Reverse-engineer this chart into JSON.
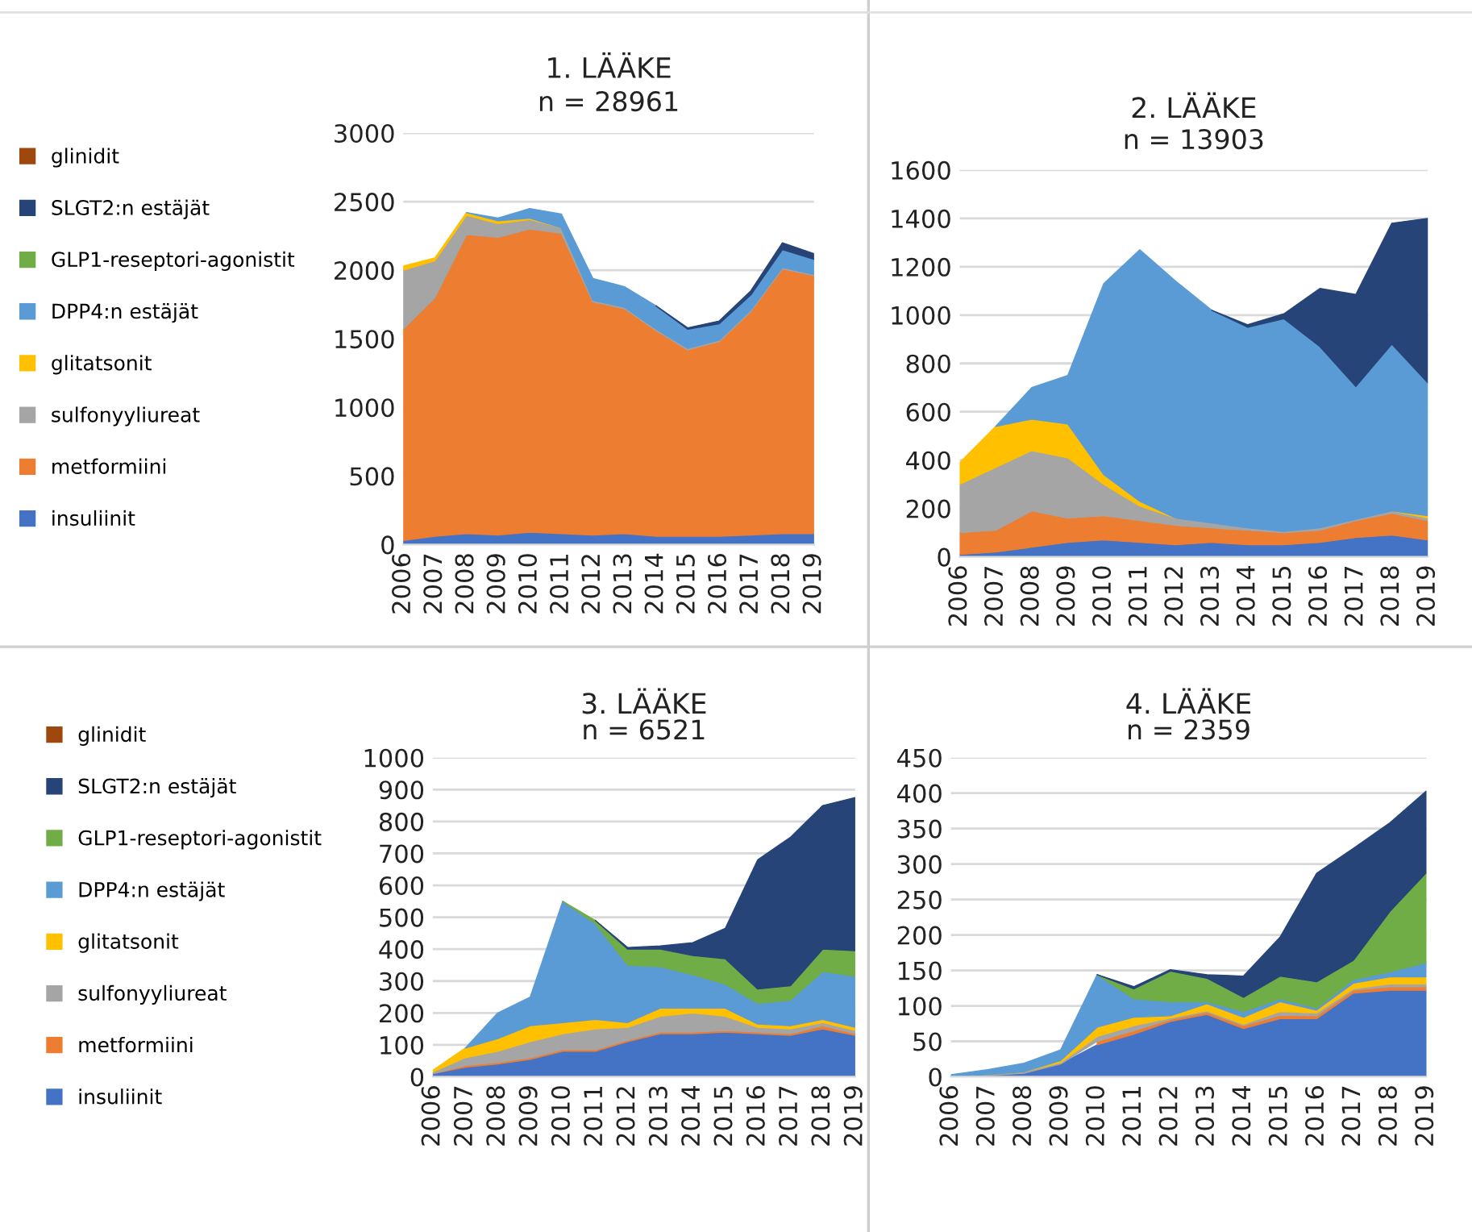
{
  "chart_data": [
    {
      "type": "area",
      "stacked": true,
      "title": "1. LÄÄKE",
      "subtitle": "n = 28961",
      "legend": "left",
      "grid": "y",
      "categories": [
        "2006",
        "2007",
        "2008",
        "2009",
        "2010",
        "2011",
        "2012",
        "2013",
        "2014",
        "2015",
        "2016",
        "2017",
        "2018",
        "2019"
      ],
      "ylim": [
        0,
        3000
      ],
      "yticks": [
        0,
        500,
        1000,
        1500,
        2000,
        2500,
        3000
      ],
      "series": [
        {
          "name": "insuliinit",
          "color": "#4472c4",
          "values": [
            30,
            60,
            80,
            70,
            90,
            80,
            70,
            80,
            60,
            60,
            60,
            70,
            80,
            80
          ]
        },
        {
          "name": "metformiini",
          "color": "#ed7d31",
          "values": [
            1540,
            1740,
            2180,
            2170,
            2210,
            2190,
            1700,
            1640,
            1500,
            1360,
            1420,
            1630,
            1930,
            1880
          ]
        },
        {
          "name": "sulfonyyliureat",
          "color": "#a5a5a5",
          "values": [
            430,
            270,
            140,
            100,
            70,
            40,
            10,
            10,
            10,
            10,
            10,
            10,
            10,
            10
          ]
        },
        {
          "name": "glitatsonit",
          "color": "#ffc000",
          "values": [
            30,
            20,
            20,
            20,
            10,
            0,
            null,
            null,
            null,
            null,
            null,
            null,
            null,
            null
          ]
        },
        {
          "name": "DPP4:n estäjät",
          "color": "#5b9bd5",
          "values": [
            null,
            null,
            0,
            20,
            70,
            100,
            160,
            150,
            170,
            140,
            120,
            110,
            130,
            110
          ]
        },
        {
          "name": "GLP1-reseptori-agonistit",
          "color": "#70ad47",
          "values": [
            null,
            null,
            null,
            null,
            null,
            null,
            null,
            null,
            null,
            null,
            null,
            null,
            null,
            null
          ]
        },
        {
          "name": "SLGT2:n estäjät",
          "color": "#264478",
          "values": [
            null,
            null,
            null,
            null,
            null,
            null,
            null,
            null,
            0,
            10,
            20,
            30,
            50,
            40
          ]
        },
        {
          "name": "glinidit",
          "color": "#9e480e",
          "values": [
            null,
            null,
            null,
            null,
            null,
            null,
            null,
            null,
            null,
            null,
            null,
            null,
            null,
            null
          ]
        }
      ]
    },
    {
      "type": "area",
      "stacked": true,
      "title": "2. LÄÄKE",
      "subtitle": "n = 13903",
      "grid": "y",
      "categories": [
        "2006",
        "2007",
        "2008",
        "2009",
        "2010",
        "2011",
        "2012",
        "2013",
        "2014",
        "2015",
        "2016",
        "2017",
        "2018",
        "2019"
      ],
      "ylim": [
        0,
        1600
      ],
      "yticks": [
        0,
        200,
        400,
        600,
        800,
        1000,
        1200,
        1400,
        1600
      ],
      "series": [
        {
          "color": "#4472c4",
          "values": [
            10,
            20,
            40,
            60,
            70,
            60,
            50,
            60,
            50,
            50,
            60,
            80,
            90,
            70
          ]
        },
        {
          "color": "#ed7d31",
          "values": [
            90,
            90,
            150,
            100,
            100,
            90,
            80,
            60,
            60,
            50,
            50,
            70,
            90,
            80
          ]
        },
        {
          "color": "#a5a5a5",
          "values": [
            200,
            260,
            250,
            250,
            130,
            60,
            30,
            20,
            10,
            5,
            10,
            5,
            10,
            10
          ]
        },
        {
          "color": "#ffc000",
          "values": [
            90,
            170,
            130,
            140,
            40,
            20,
            0,
            null,
            null,
            null,
            null,
            null,
            0,
            10
          ]
        },
        {
          "color": "#5b9bd5",
          "values": [
            null,
            0,
            130,
            200,
            790,
            1040,
            980,
            880,
            830,
            880,
            750,
            550,
            690,
            550
          ]
        },
        {
          "color": "#264478",
          "values": [
            null,
            null,
            null,
            null,
            null,
            null,
            null,
            0,
            10,
            20,
            240,
            380,
            500,
            680
          ]
        },
        {
          "color": "#9e480e",
          "values": [
            null,
            null,
            null,
            null,
            null,
            null,
            null,
            null,
            null,
            null,
            null,
            null,
            null,
            null
          ]
        }
      ]
    },
    {
      "type": "area",
      "stacked": true,
      "title": "3. LÄÄKE",
      "subtitle": "n = 6521",
      "legend": "left",
      "grid": "y",
      "categories": [
        "2006",
        "2007",
        "2008",
        "2009",
        "2010",
        "2011",
        "2012",
        "2013",
        "2014",
        "2015",
        "2016",
        "2017",
        "2018",
        "2019"
      ],
      "ylim": [
        0,
        1000
      ],
      "yticks": [
        0,
        100,
        200,
        300,
        400,
        500,
        600,
        700,
        800,
        900,
        1000
      ],
      "series": [
        {
          "name": "insuliinit",
          "color": "#4472c4",
          "values": [
            10,
            30,
            40,
            55,
            80,
            80,
            110,
            135,
            135,
            140,
            135,
            130,
            150,
            130
          ]
        },
        {
          "name": "metformiini",
          "color": "#ed7d31",
          "values": [
            0,
            5,
            5,
            5,
            5,
            5,
            5,
            5,
            5,
            5,
            5,
            5,
            10,
            5
          ]
        },
        {
          "name": "sulfonyyliureat",
          "color": "#a5a5a5",
          "values": [
            5,
            25,
            35,
            50,
            50,
            65,
            40,
            50,
            60,
            45,
            15,
            15,
            10,
            10
          ]
        },
        {
          "name": "glitatsonit",
          "color": "#ffc000",
          "values": [
            5,
            30,
            40,
            50,
            35,
            30,
            15,
            25,
            15,
            25,
            10,
            10,
            10,
            10
          ]
        },
        {
          "name": "DPP4:n estäjät",
          "color": "#5b9bd5",
          "values": [
            null,
            0,
            80,
            90,
            380,
            300,
            180,
            130,
            105,
            75,
            65,
            80,
            150,
            160
          ]
        },
        {
          "name": "GLP1-reseptori-agonistit",
          "color": "#70ad47",
          "values": [
            null,
            null,
            null,
            null,
            0,
            10,
            50,
            55,
            60,
            80,
            45,
            45,
            70,
            80
          ]
        },
        {
          "name": "SLGT2:n estäjät",
          "color": "#264478",
          "values": [
            null,
            null,
            null,
            null,
            null,
            0,
            5,
            10,
            40,
            95,
            405,
            465,
            450,
            480
          ]
        },
        {
          "name": "glinidit",
          "color": "#9e480e",
          "values": [
            null,
            null,
            null,
            null,
            null,
            null,
            null,
            null,
            null,
            null,
            null,
            null,
            null,
            null
          ]
        }
      ]
    },
    {
      "type": "area",
      "stacked": true,
      "title": "4. LÄÄKE",
      "subtitle": "n = 2359",
      "grid": "y",
      "categories": [
        "2006",
        "2007",
        "2008",
        "2009",
        "2010",
        "2011",
        "2012",
        "2013",
        "2014",
        "2015",
        "2016",
        "2017",
        "2018",
        "2019"
      ],
      "ylim": [
        0,
        450
      ],
      "yticks": [
        0,
        50,
        100,
        150,
        200,
        250,
        300,
        350,
        400,
        450
      ],
      "series": [
        {
          "color": "#4472c4",
          "values": [
            0,
            2,
            5,
            18,
            45,
            60,
            78,
            88,
            68,
            82,
            82,
            118,
            122,
            122
          ]
        },
        {
          "color": "#ed7d31",
          "values": [
            null,
            null,
            null,
            null,
            5,
            5,
            3,
            3,
            4,
            5,
            4,
            4,
            5,
            5
          ]
        },
        {
          "color": "#a5a5a5",
          "values": [
            0,
            1,
            2,
            2,
            7,
            7,
            2,
            2,
            2,
            5,
            4,
            2,
            4,
            4
          ]
        },
        {
          "color": "#ffc000",
          "values": [
            0,
            0,
            0,
            3,
            13,
            12,
            3,
            10,
            10,
            14,
            4,
            8,
            10,
            10
          ]
        },
        {
          "color": "#5b9bd5",
          "values": [
            3,
            7,
            12,
            15,
            74,
            26,
            20,
            3,
            8,
            4,
            3,
            5,
            7,
            20
          ]
        },
        {
          "color": "#70ad47",
          "values": [
            null,
            null,
            null,
            null,
            0,
            14,
            43,
            33,
            20,
            32,
            37,
            27,
            85,
            127
          ]
        },
        {
          "color": "#264478",
          "values": [
            null,
            null,
            null,
            null,
            0,
            3,
            2,
            5,
            30,
            55,
            153,
            158,
            125,
            115
          ]
        },
        {
          "color": "#9e480e",
          "values": [
            null,
            null,
            null,
            null,
            null,
            null,
            null,
            null,
            null,
            null,
            null,
            null,
            null,
            null
          ]
        }
      ]
    }
  ]
}
